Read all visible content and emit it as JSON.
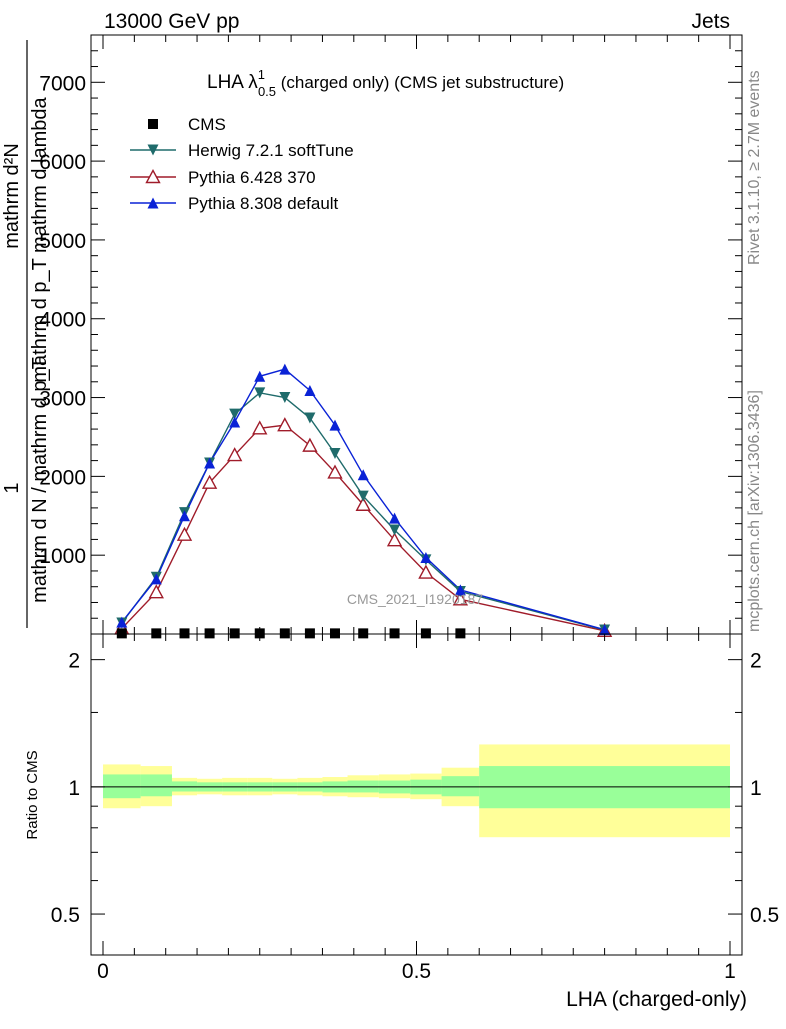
{
  "header": {
    "left": "13000 GeV pp",
    "right": "Jets"
  },
  "side_labels": {
    "rivet": "Rivet 3.1.10, ≥ 2.7M events",
    "mcplots": "mcplots.cern.ch [arXiv:1306.3436]"
  },
  "watermark": "CMS_2021_I1920187",
  "colors": {
    "herwig": "#1f6b6b",
    "pythia6": "#a01c2a",
    "pythia8": "#0a22d6",
    "cms": "#000000",
    "band_inner": "#99ff99",
    "band_outer": "#ffff99"
  },
  "chart_data": [
    {
      "type": "line",
      "title_main": "LHA λ",
      "title_sup": "1",
      "title_sub": "0.5",
      "title_rest": " (charged only) (CMS jet substructure)",
      "ylabel_numerator": "mathrm d²N",
      "ylabel_denominator": "mathrm d p_T mathrm d lambda",
      "ylabel_prefix": "1",
      "ylabel_prefix_den": "mathrm d N / mathrm d p_T",
      "yticks": [
        "1000",
        "2000",
        "3000",
        "4000",
        "5000",
        "6000",
        "7000"
      ],
      "ytick_values": [
        1000,
        2000,
        3000,
        4000,
        5000,
        6000,
        7000
      ],
      "ylim": [
        0,
        7600
      ],
      "xlim": [
        0,
        1
      ],
      "series": [
        {
          "name": "CMS",
          "marker": "square",
          "x": [
            0.03,
            0.085,
            0.13,
            0.17,
            0.21,
            0.25,
            0.29,
            0.33,
            0.37,
            0.415,
            0.465,
            0.515,
            0.57
          ],
          "values": [
            8,
            8,
            8,
            8,
            8,
            8,
            8,
            8,
            8,
            8,
            8,
            8,
            8
          ]
        },
        {
          "name": "Herwig 7.2.1 softTune",
          "marker": "triangle-down",
          "x": [
            0.03,
            0.085,
            0.13,
            0.17,
            0.21,
            0.25,
            0.29,
            0.33,
            0.37,
            0.415,
            0.465,
            0.515,
            0.57,
            0.8
          ],
          "values": [
            140,
            720,
            1540,
            2170,
            2790,
            3060,
            3000,
            2740,
            2290,
            1750,
            1320,
            940,
            540,
            50
          ]
        },
        {
          "name": "Pythia 6.428 370",
          "marker": "triangle-up-open",
          "x": [
            0.03,
            0.085,
            0.13,
            0.17,
            0.21,
            0.25,
            0.29,
            0.33,
            0.37,
            0.415,
            0.465,
            0.515,
            0.57,
            0.8
          ],
          "values": [
            70,
            530,
            1260,
            1920,
            2270,
            2610,
            2650,
            2390,
            2050,
            1640,
            1190,
            780,
            440,
            40
          ]
        },
        {
          "name": "Pythia 8.308 default",
          "marker": "triangle-up",
          "x": [
            0.03,
            0.085,
            0.13,
            0.17,
            0.21,
            0.25,
            0.29,
            0.33,
            0.37,
            0.415,
            0.465,
            0.515,
            0.57,
            0.8
          ],
          "values": [
            150,
            700,
            1500,
            2170,
            2690,
            3270,
            3360,
            3090,
            2650,
            2020,
            1470,
            970,
            560,
            55
          ]
        }
      ]
    },
    {
      "type": "area",
      "ylabel": "Ratio to CMS",
      "xlabel": "LHA (charged-only)",
      "xticks": [
        "0",
        "0.5",
        "1"
      ],
      "xtick_values": [
        0,
        0.5,
        1
      ],
      "yticks": [
        "0.5",
        "1",
        "2"
      ],
      "ytick_values": [
        0.5,
        1,
        2
      ],
      "ylim": [
        0.4,
        2.3
      ],
      "reference_line": 1,
      "bins": [
        {
          "lo": 0.0,
          "hi": 0.06,
          "inner": [
            0.94,
            1.07
          ],
          "outer": [
            0.89,
            1.13
          ]
        },
        {
          "lo": 0.06,
          "hi": 0.11,
          "inner": [
            0.95,
            1.07
          ],
          "outer": [
            0.9,
            1.12
          ]
        },
        {
          "lo": 0.11,
          "hi": 0.15,
          "inner": [
            0.975,
            1.03
          ],
          "outer": [
            0.955,
            1.05
          ]
        },
        {
          "lo": 0.15,
          "hi": 0.19,
          "inner": [
            0.975,
            1.025
          ],
          "outer": [
            0.96,
            1.045
          ]
        },
        {
          "lo": 0.19,
          "hi": 0.23,
          "inner": [
            0.975,
            1.025
          ],
          "outer": [
            0.955,
            1.05
          ]
        },
        {
          "lo": 0.23,
          "hi": 0.27,
          "inner": [
            0.975,
            1.025
          ],
          "outer": [
            0.955,
            1.05
          ]
        },
        {
          "lo": 0.27,
          "hi": 0.31,
          "inner": [
            0.975,
            1.025
          ],
          "outer": [
            0.96,
            1.045
          ]
        },
        {
          "lo": 0.31,
          "hi": 0.35,
          "inner": [
            0.975,
            1.025
          ],
          "outer": [
            0.955,
            1.05
          ]
        },
        {
          "lo": 0.35,
          "hi": 0.39,
          "inner": [
            0.97,
            1.03
          ],
          "outer": [
            0.95,
            1.055
          ]
        },
        {
          "lo": 0.39,
          "hi": 0.44,
          "inner": [
            0.97,
            1.035
          ],
          "outer": [
            0.945,
            1.065
          ]
        },
        {
          "lo": 0.44,
          "hi": 0.49,
          "inner": [
            0.965,
            1.035
          ],
          "outer": [
            0.94,
            1.07
          ]
        },
        {
          "lo": 0.49,
          "hi": 0.54,
          "inner": [
            0.96,
            1.04
          ],
          "outer": [
            0.935,
            1.075
          ]
        },
        {
          "lo": 0.54,
          "hi": 0.6,
          "inner": [
            0.95,
            1.06
          ],
          "outer": [
            0.9,
            1.11
          ]
        },
        {
          "lo": 0.6,
          "hi": 1.0,
          "inner": [
            0.89,
            1.12
          ],
          "outer": [
            0.76,
            1.26
          ]
        }
      ]
    }
  ]
}
